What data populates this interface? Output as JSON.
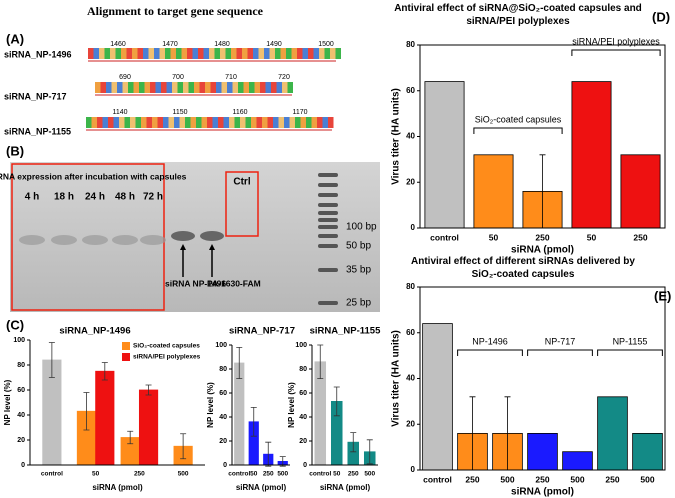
{
  "panel_a": {
    "label": "(A)",
    "title": "Alignment to target gene sequence",
    "rows": [
      {
        "name": "siRNA_NP-1496",
        "positions": [
          1460,
          1470,
          1480,
          1490,
          1500
        ]
      },
      {
        "name": "siRNA_NP-717",
        "positions": [
          690,
          700,
          710,
          720
        ]
      },
      {
        "name": "siRNA_NP-1155",
        "positions": [
          1140,
          1150,
          1160,
          1170
        ]
      }
    ]
  },
  "panel_b": {
    "label": "(B)",
    "box_title": "siRNA  expression after incubation with capsules",
    "lanes": [
      "4 h",
      "18 h",
      "24 h",
      "48 h",
      "72 h"
    ],
    "ctrl": "Ctrl",
    "ladder": [
      "100 bp",
      "50 bp",
      "35 bp",
      "25 bp"
    ],
    "arrow_labels": [
      "siRNA NP-1496",
      "PA-1630-FAM"
    ]
  },
  "chart_data": [
    {
      "type": "bar",
      "panel_label": "(C)",
      "title": "siRNA_NP-1496",
      "x_label": "siRNA (pmol)",
      "y_label": "NP level (%)",
      "categories": [
        "control",
        "50",
        "250",
        "500"
      ],
      "series": [
        {
          "color": "#c0c0c0",
          "values": [
            84,
            null,
            null,
            null
          ],
          "errors": [
            14,
            null,
            null,
            null
          ]
        },
        {
          "name": "SiO₂-coated capsules",
          "color": "#ff8c1a",
          "values": [
            null,
            43,
            22,
            15
          ],
          "errors": [
            null,
            15,
            5,
            10
          ]
        },
        {
          "name": "siRNA/PEI polyplexes",
          "color": "#ee1111",
          "values": [
            null,
            75,
            60,
            null
          ],
          "errors": [
            null,
            7,
            4,
            null
          ]
        }
      ],
      "ylim": [
        0,
        100
      ],
      "yticks": [
        0,
        20,
        40,
        60,
        80,
        100
      ]
    },
    {
      "type": "bar",
      "title": "siRNA_NP-717",
      "x_label": "siRNA (pmol)",
      "y_label": "NP level (%)",
      "categories": [
        "control",
        "50",
        "250",
        "500"
      ],
      "series": [
        {
          "color": "#c0c0c0",
          "values": [
            85,
            null,
            null,
            null
          ],
          "errors": [
            13,
            null,
            null,
            null
          ]
        },
        {
          "color": "#1a1aff",
          "values": [
            null,
            36,
            9,
            3
          ],
          "errors": [
            null,
            12,
            10,
            4
          ]
        }
      ],
      "ylim": [
        0,
        100
      ],
      "yticks": [
        0,
        20,
        40,
        60,
        80,
        100
      ]
    },
    {
      "type": "bar",
      "title": "siRNA_NP-1155",
      "x_label": "siRNA (pmol)",
      "y_label": "NP level (%)",
      "categories": [
        "control",
        "50",
        "250",
        "500"
      ],
      "series": [
        {
          "color": "#c0c0c0",
          "values": [
            86,
            null,
            null,
            null
          ],
          "errors": [
            14,
            null,
            null,
            null
          ]
        },
        {
          "color": "#138a86",
          "values": [
            null,
            53,
            19,
            11
          ],
          "errors": [
            null,
            12,
            8,
            10
          ]
        }
      ],
      "ylim": [
        0,
        100
      ],
      "yticks": [
        0,
        20,
        40,
        60,
        80,
        100
      ]
    },
    {
      "type": "bar",
      "panel_label": "(D)",
      "title": "Antiviral effect of siRNA@SiO₂-coated capsules and siRNA/PEI polyplexes",
      "x_label": "siRNA (pmol)",
      "y_label": "Virus titer (HA units)",
      "annotations": [
        "SiO₂-coated capsules",
        "siRNA/PEI polyplexes"
      ],
      "categories": [
        "control",
        "50",
        "250",
        "50",
        "250"
      ],
      "series": [
        {
          "color": "#c0c0c0",
          "values": [
            64,
            null,
            null,
            null,
            null
          ]
        },
        {
          "color": "#ff8c1a",
          "values": [
            null,
            32,
            16,
            null,
            null
          ],
          "errors": [
            null,
            null,
            16,
            null,
            null
          ]
        },
        {
          "color": "#ee1111",
          "values": [
            null,
            null,
            null,
            64,
            32
          ]
        }
      ],
      "ylim": [
        0,
        80
      ],
      "yticks": [
        0,
        20,
        40,
        60,
        80
      ]
    },
    {
      "type": "bar",
      "panel_label": "(E)",
      "title": "Antiviral effect of different siRNAs delivered by SiO₂-coated capsules",
      "x_label": "siRNA (pmol)",
      "y_label": "Virus titer (HA units)",
      "annotations": [
        "NP-1496",
        "NP-717",
        "NP-1155"
      ],
      "categories": [
        "control",
        "250",
        "500",
        "250",
        "500",
        "250",
        "500"
      ],
      "series": [
        {
          "color": "#c0c0c0",
          "values": [
            64,
            null,
            null,
            null,
            null,
            null,
            null
          ]
        },
        {
          "color": "#ff8c1a",
          "values": [
            null,
            16,
            16,
            null,
            null,
            null,
            null
          ],
          "errors": [
            null,
            16,
            16,
            null,
            null,
            null,
            null
          ]
        },
        {
          "color": "#1a1aff",
          "values": [
            null,
            null,
            null,
            16,
            8,
            null,
            null
          ]
        },
        {
          "color": "#138a86",
          "values": [
            null,
            null,
            null,
            null,
            null,
            32,
            16
          ]
        }
      ],
      "ylim": [
        0,
        80
      ],
      "yticks": [
        0,
        20,
        40,
        60,
        80
      ]
    }
  ]
}
